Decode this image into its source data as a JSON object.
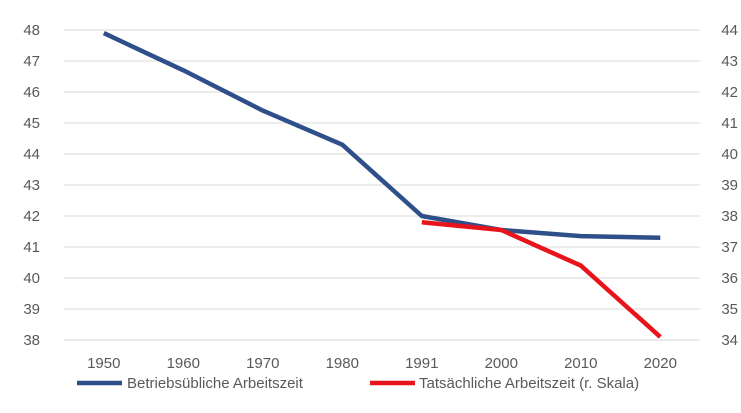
{
  "chart_data": {
    "type": "line",
    "title": "",
    "xlabel": "",
    "ylabel": "",
    "categories": [
      "1950",
      "1960",
      "1970",
      "1980",
      "1991",
      "2000",
      "2010",
      "2020"
    ],
    "ylim_left": [
      38,
      48
    ],
    "ylim_right": [
      34,
      44
    ],
    "yticks_left": [
      "48",
      "47",
      "46",
      "45",
      "44",
      "43",
      "42",
      "41",
      "40",
      "39",
      "38"
    ],
    "yticks_right": [
      "44",
      "43",
      "42",
      "41",
      "40",
      "39",
      "38",
      "37",
      "36",
      "35",
      "34"
    ],
    "grid": "horizontal",
    "legend_position": "bottom",
    "series": [
      {
        "name": "Betriebsübliche Arbeitszeit",
        "axis": "left",
        "color": "#2F4F8A",
        "values": [
          47.9,
          46.7,
          45.4,
          44.3,
          42.0,
          41.55,
          41.35,
          41.3
        ]
      },
      {
        "name": "Tatsächliche Arbeitszeit (r. Skala)",
        "axis": "right",
        "color": "#E8141C",
        "values": [
          null,
          null,
          null,
          null,
          37.8,
          37.55,
          36.4,
          34.1
        ]
      }
    ]
  }
}
